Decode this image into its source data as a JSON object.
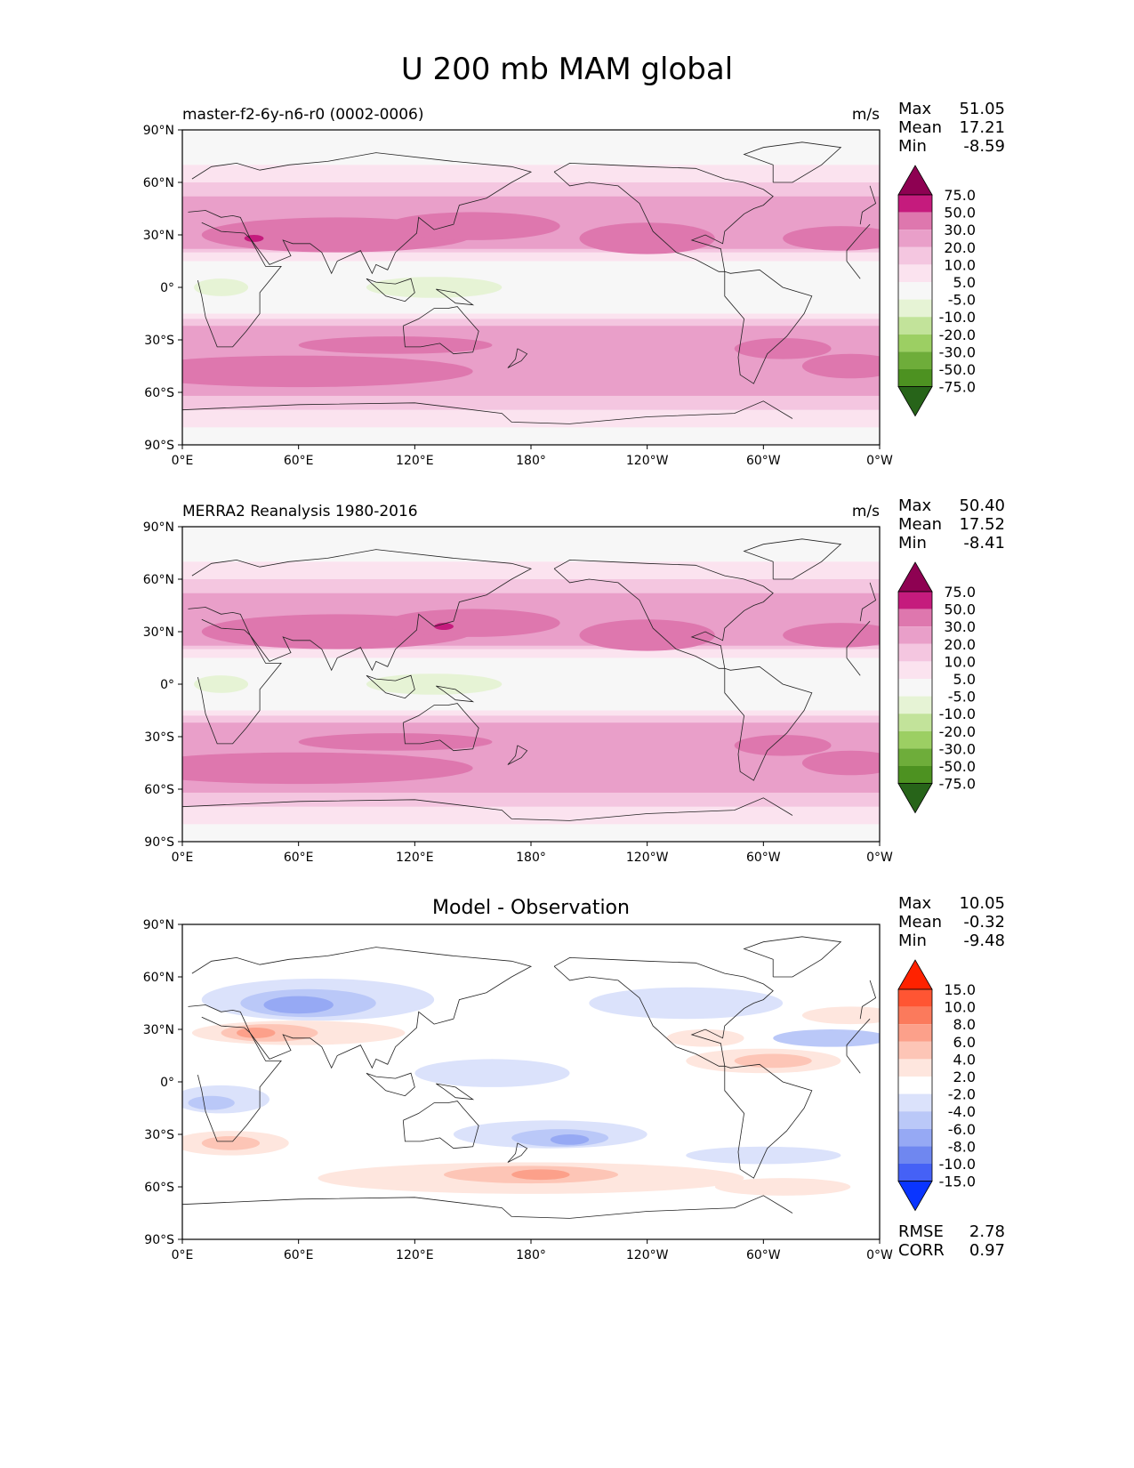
{
  "title": "U 200 mb MAM global",
  "units": "m/s",
  "chart_data": [
    {
      "type": "heatmap",
      "subtitle": "master-f2-6y-n6-r0 (0002-0006)",
      "units": "m/s",
      "stats": {
        "max_label": "Max",
        "max": "51.05",
        "mean_label": "Mean",
        "mean": "17.21",
        "min_label": "Min",
        "min": "-8.59"
      },
      "x_ticks": [
        "0°E",
        "60°E",
        "120°E",
        "180°",
        "120°W",
        "60°W",
        "0°W"
      ],
      "y_ticks": [
        "90°N",
        "60°N",
        "30°N",
        "0°",
        "30°S",
        "60°S",
        "90°S"
      ],
      "xlim": [
        0,
        360
      ],
      "ylim": [
        -90,
        90
      ],
      "colorbar": {
        "levels": [
          "75.0",
          "50.0",
          "30.0",
          "20.0",
          "10.0",
          "5.0",
          "-5.0",
          "-10.0",
          "-20.0",
          "-30.0",
          "-50.0",
          "-75.0"
        ],
        "colors": [
          "#8e0152",
          "#c51b7d",
          "#de77ae",
          "#e99fc9",
          "#f4c6e0",
          "#fbe3ef",
          "#f7f7f7",
          "#e6f3d5",
          "#c2e39a",
          "#9ccf63",
          "#6ead3a",
          "#4d9221",
          "#276419"
        ]
      }
    },
    {
      "type": "heatmap",
      "subtitle": "MERRA2 Reanalysis 1980-2016",
      "units": "m/s",
      "stats": {
        "max_label": "Max",
        "max": "50.40",
        "mean_label": "Mean",
        "mean": "17.52",
        "min_label": "Min",
        "min": "-8.41"
      },
      "x_ticks": [
        "0°E",
        "60°E",
        "120°E",
        "180°",
        "120°W",
        "60°W",
        "0°W"
      ],
      "y_ticks": [
        "90°N",
        "60°N",
        "30°N",
        "0°",
        "30°S",
        "60°S",
        "90°S"
      ],
      "xlim": [
        0,
        360
      ],
      "ylim": [
        -90,
        90
      ],
      "colorbar": {
        "levels": [
          "75.0",
          "50.0",
          "30.0",
          "20.0",
          "10.0",
          "5.0",
          "-5.0",
          "-10.0",
          "-20.0",
          "-30.0",
          "-50.0",
          "-75.0"
        ],
        "colors": [
          "#8e0152",
          "#c51b7d",
          "#de77ae",
          "#e99fc9",
          "#f4c6e0",
          "#fbe3ef",
          "#f7f7f7",
          "#e6f3d5",
          "#c2e39a",
          "#9ccf63",
          "#6ead3a",
          "#4d9221",
          "#276419"
        ]
      }
    },
    {
      "type": "heatmap",
      "subtitle": "Model - Observation",
      "units": "",
      "stats": {
        "max_label": "Max",
        "max": "10.05",
        "mean_label": "Mean",
        "mean": "-0.32",
        "min_label": "Min",
        "min": "-9.48"
      },
      "metrics": {
        "rmse_label": "RMSE",
        "rmse": "2.78",
        "corr_label": "CORR",
        "corr": "0.97"
      },
      "x_ticks": [
        "0°E",
        "60°E",
        "120°E",
        "180°",
        "120°W",
        "60°W",
        "0°W"
      ],
      "y_ticks": [
        "90°N",
        "60°N",
        "30°N",
        "0°",
        "30°S",
        "60°S",
        "90°S"
      ],
      "xlim": [
        0,
        360
      ],
      "ylim": [
        -90,
        90
      ],
      "colorbar": {
        "levels": [
          "15.0",
          "10.0",
          "8.0",
          "6.0",
          "4.0",
          "2.0",
          "-2.0",
          "-4.0",
          "-6.0",
          "-8.0",
          "-10.0",
          "-15.0"
        ],
        "colors": [
          "#ff2200",
          "#ff5533",
          "#fb7a5c",
          "#fca08a",
          "#fdc5b6",
          "#fee6de",
          "#ffffff",
          "#dbe2fb",
          "#bac8f8",
          "#96a9f4",
          "#6f87f0",
          "#4561f6",
          "#0a35ff"
        ]
      }
    }
  ]
}
